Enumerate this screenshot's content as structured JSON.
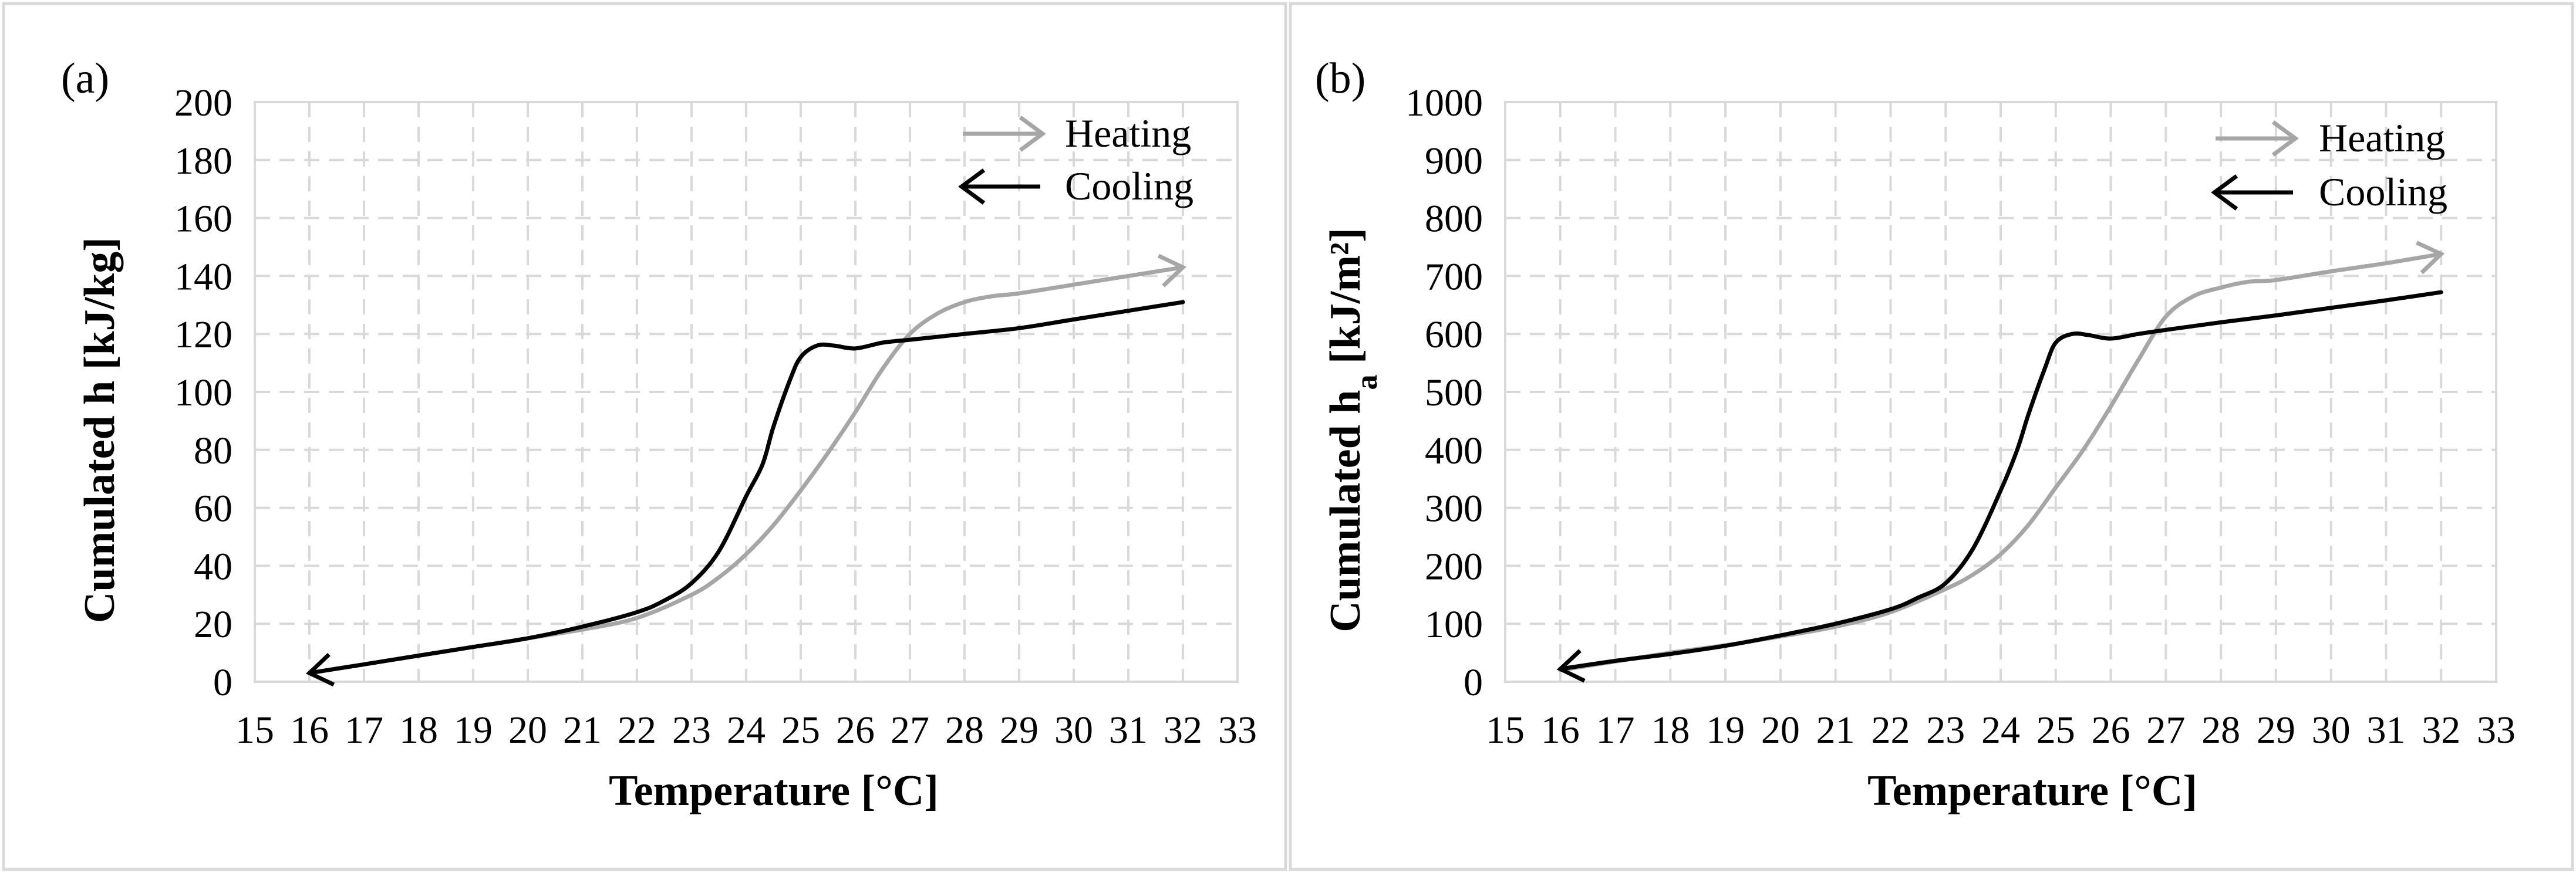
{
  "figure": {
    "colors": {
      "heating": "#a6a6a6",
      "cooling": "#000000",
      "grid": "#d9d9d9"
    }
  },
  "chart_data": [
    {
      "panel_label": "(a)",
      "type": "line",
      "title": "",
      "xlabel": "Temperature [°C]",
      "ylabel": "Cumulated h [kJ/kg]",
      "ylabel_main": "Cumulated h",
      "ylabel_sub": "",
      "ylabel_unit": " [kJ/kg]",
      "xlim": [
        15,
        33
      ],
      "ylim": [
        0,
        200
      ],
      "xticks": [
        15,
        16,
        17,
        18,
        19,
        20,
        21,
        22,
        23,
        24,
        25,
        26,
        27,
        28,
        29,
        30,
        31,
        32,
        33
      ],
      "yticks": [
        0,
        20,
        40,
        60,
        80,
        100,
        120,
        140,
        160,
        180,
        200
      ],
      "grid": true,
      "legend": {
        "position": "top-right",
        "entries": [
          "Heating",
          "Cooling"
        ]
      },
      "series": [
        {
          "name": "Heating",
          "direction": "increasing temperature",
          "x": [
            16,
            17,
            18,
            19,
            20,
            21,
            22,
            23,
            23.5,
            24,
            24.5,
            25,
            25.5,
            26,
            26.5,
            27,
            27.5,
            28,
            28.5,
            29,
            30,
            31,
            32
          ],
          "y": [
            3,
            6,
            9,
            12,
            15,
            18,
            22,
            30,
            36,
            44,
            54,
            66,
            79,
            93,
            108,
            120,
            127,
            131,
            133,
            134,
            137,
            140,
            143
          ]
        },
        {
          "name": "Cooling",
          "direction": "decreasing temperature",
          "x": [
            32,
            31,
            30,
            29,
            28,
            27,
            26.5,
            26,
            25.6,
            25.3,
            25,
            24.8,
            24.5,
            24.3,
            24,
            23.5,
            23,
            22.5,
            22,
            21,
            20,
            19,
            18,
            17,
            16
          ],
          "y": [
            131,
            128,
            125,
            122,
            120,
            118,
            117,
            115,
            116,
            116,
            112,
            104,
            88,
            75,
            64,
            45,
            34,
            28,
            24,
            19,
            15,
            12,
            9,
            6,
            3
          ]
        }
      ]
    },
    {
      "panel_label": "(b)",
      "type": "line",
      "title": "",
      "xlabel": "Temperature [°C]",
      "ylabel": "Cumulated ha [kJ/m²]",
      "ylabel_main": "Cumulated h",
      "ylabel_sub": "a",
      "ylabel_unit": " [kJ/m²]",
      "xlim": [
        15,
        33
      ],
      "ylim": [
        0,
        1000
      ],
      "xticks": [
        15,
        16,
        17,
        18,
        19,
        20,
        21,
        22,
        23,
        24,
        25,
        26,
        27,
        28,
        29,
        30,
        31,
        32,
        33
      ],
      "yticks": [
        0,
        100,
        200,
        300,
        400,
        500,
        600,
        700,
        800,
        900,
        1000
      ],
      "grid": true,
      "legend": {
        "position": "top-right",
        "entries": [
          "Heating",
          "Cooling"
        ]
      },
      "series": [
        {
          "name": "Heating",
          "direction": "increasing temperature",
          "x": [
            16,
            17,
            18,
            19,
            20,
            21,
            22,
            23,
            23.5,
            24,
            24.5,
            25,
            25.5,
            26,
            26.5,
            27,
            27.5,
            28,
            28.5,
            29,
            30,
            31,
            32
          ],
          "y": [
            20,
            35,
            50,
            63,
            78,
            95,
            120,
            160,
            185,
            220,
            270,
            335,
            400,
            475,
            555,
            630,
            665,
            680,
            690,
            693,
            708,
            722,
            738
          ]
        },
        {
          "name": "Cooling",
          "direction": "decreasing temperature",
          "x": [
            32,
            31,
            30,
            29,
            28,
            27,
            26.5,
            26,
            25.6,
            25.3,
            25,
            24.8,
            24.5,
            24.3,
            24,
            23.5,
            23,
            22.5,
            22,
            21,
            20,
            19,
            18,
            17,
            16
          ],
          "y": [
            672,
            658,
            645,
            632,
            620,
            607,
            600,
            592,
            598,
            600,
            585,
            540,
            460,
            400,
            330,
            230,
            170,
            145,
            125,
            100,
            80,
            62,
            48,
            36,
            22
          ]
        }
      ]
    }
  ]
}
